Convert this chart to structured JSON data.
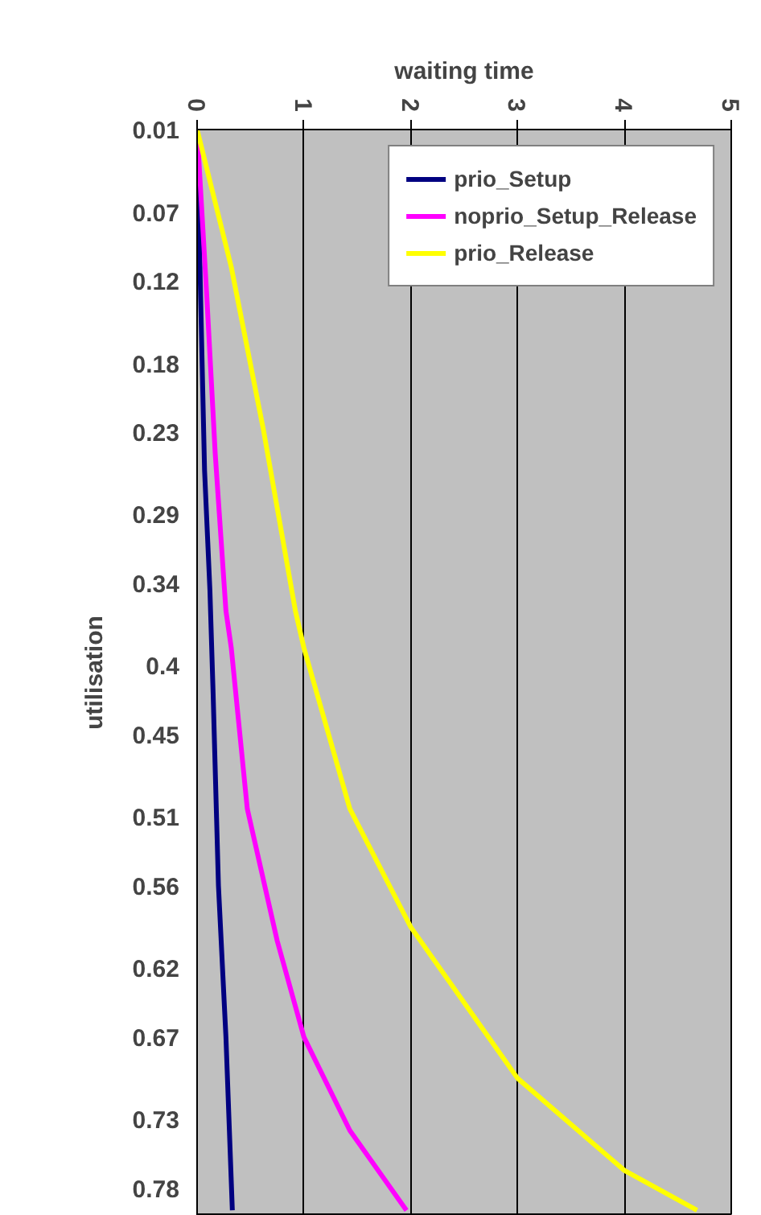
{
  "chart_data": {
    "type": "line",
    "xlabel": "waiting time",
    "ylabel": "utilisation",
    "ylim": [
      0.8,
      0.01
    ],
    "yticks": [
      0.01,
      0.07,
      0.12,
      0.18,
      0.23,
      0.29,
      0.34,
      0.4,
      0.45,
      0.51,
      0.56,
      0.62,
      0.67,
      0.73,
      0.78
    ],
    "xlim": [
      0,
      5
    ],
    "xticks": [
      0,
      1,
      2,
      3,
      4,
      5
    ],
    "grid": "x",
    "legend": "top right",
    "line_style": "solid",
    "series": [
      {
        "name": "prio_Setup",
        "color": "#000080",
        "values": [
          0.01,
          0.087,
          0.258,
          0.345,
          0.42,
          0.56,
          0.67,
          0.796
        ],
        "x": [
          0,
          0.02,
          0.07,
          0.12,
          0.15,
          0.2,
          0.27,
          0.33
        ]
      },
      {
        "name": "noprio_Setup_Release",
        "color": "#ff00ff",
        "values": [
          0.01,
          0.13,
          0.246,
          0.36,
          0.387,
          0.504,
          0.6,
          0.67,
          0.738,
          0.796
        ],
        "x": [
          0,
          0.09,
          0.17,
          0.27,
          0.32,
          0.47,
          0.75,
          1.0,
          1.43,
          1.96
        ]
      },
      {
        "name": "prio_Release",
        "color": "#ffff00",
        "values": [
          0.01,
          0.11,
          0.228,
          0.36,
          0.387,
          0.504,
          0.59,
          0.7,
          0.767,
          0.796
        ],
        "x": [
          0,
          0.32,
          0.62,
          0.92,
          1.0,
          1.43,
          2.0,
          3.0,
          4.0,
          4.68
        ]
      }
    ]
  }
}
